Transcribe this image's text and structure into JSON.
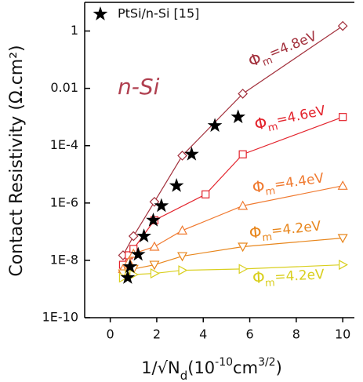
{
  "chart_data": {
    "type": "line",
    "y_label": "Contact Resistivity  (Ω.cm²)",
    "x_label_parts": [
      {
        "text": "1/√N",
        "style": "normal"
      },
      {
        "text": "d",
        "style": "sub"
      },
      {
        "text": "(10",
        "style": "normal"
      },
      {
        "text": "-10",
        "style": "sup"
      },
      {
        "text": "cm",
        "style": "normal"
      },
      {
        "text": "3/2",
        "style": "sup"
      },
      {
        "text": ")",
        "style": "normal"
      }
    ],
    "annotation": "n-Si",
    "xlim": [
      -1.1,
      10.5
    ],
    "xticks": [
      0,
      2,
      4,
      6,
      8,
      10
    ],
    "ylim": [
      1e-10,
      10
    ],
    "log_y": true,
    "yticks": [
      1,
      0.01,
      {
        "value": 0.0001,
        "label": "1E-4"
      },
      {
        "value": 1e-06,
        "label": "1E-6"
      },
      {
        "value": 1e-08,
        "label": "1E-8"
      },
      {
        "value": 1e-10,
        "label": "1E-10"
      }
    ],
    "series": [
      {
        "label": {
          "symbol": "Φ",
          "sub": "m",
          "rest": "=4.8eV"
        },
        "color": "#a3313d",
        "marker": "diamond",
        "x": [
          0.55,
          1.0,
          1.9,
          3.1,
          5.7,
          10
        ],
        "values": [
          1.5e-08,
          7e-08,
          1.1e-06,
          4.5e-05,
          0.0065,
          1.5
        ]
      },
      {
        "label": {
          "symbol": "Φ",
          "sub": "m",
          "rest": "=4.6eV"
        },
        "color": "#e3232c",
        "marker": "square",
        "x": [
          0.55,
          0.8,
          1.0,
          1.9,
          4.1,
          5.7,
          10
        ],
        "values": [
          7e-09,
          1.5e-08,
          2.5e-08,
          2.5e-07,
          2e-06,
          5e-05,
          0.001
        ]
      },
      {
        "label": {
          "symbol": "Φ",
          "sub": "m",
          "rest": "=4.4eV"
        },
        "color": "#f07a30",
        "marker": "triangle-up",
        "x": [
          0.55,
          0.8,
          1.0,
          1.9,
          3.1,
          5.7,
          10
        ],
        "values": [
          5e-09,
          9e-09,
          1.7e-08,
          3e-08,
          1.1e-07,
          8e-07,
          4e-06
        ]
      },
      {
        "label": {
          "symbol": "Φ",
          "sub": "m",
          "rest": "=4.2eV"
        },
        "color": "#e8861c",
        "marker": "triangle-down",
        "x": [
          0.55,
          0.8,
          1.0,
          1.9,
          3.1,
          5.7,
          10
        ],
        "values": [
          3.5e-09,
          4e-09,
          5e-09,
          7e-09,
          1.4e-08,
          3e-08,
          6e-08
        ]
      },
      {
        "label": {
          "symbol": "Φ",
          "sub": "m",
          "rest": "=4.2eV"
        },
        "color": "#d9cf1e",
        "marker": "triangle-right",
        "x": [
          0.55,
          0.8,
          1.0,
          1.9,
          3.1,
          5.7,
          10
        ],
        "values": [
          2.5e-09,
          3e-09,
          3.2e-09,
          3.5e-09,
          4.5e-09,
          5e-09,
          7e-09
        ]
      },
      {
        "name": "PtSi/n-Si [15]",
        "color": "#000000",
        "marker": "star",
        "line": false,
        "x": [
          0.75,
          0.85,
          1.2,
          1.45,
          1.85,
          2.2,
          2.85,
          3.5,
          4.5,
          5.5
        ],
        "values": [
          2.5e-09,
          6e-09,
          1.6e-08,
          7e-08,
          2.5e-07,
          8e-07,
          4e-06,
          5e-05,
          0.0005,
          0.001
        ]
      }
    ]
  }
}
